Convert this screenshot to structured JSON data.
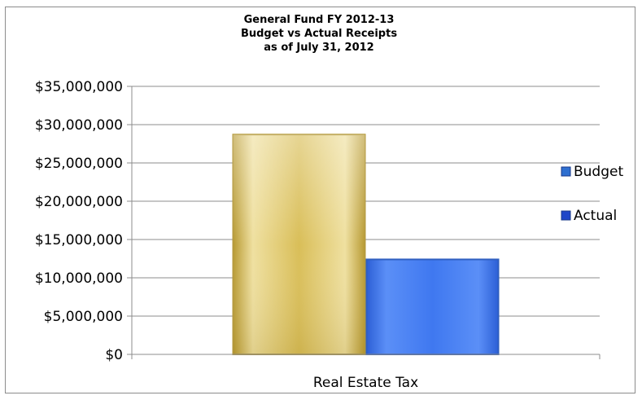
{
  "chart_data": {
    "type": "bar",
    "title": [
      "General Fund FY 2012-13",
      "Budget vs Actual Receipts",
      "as of July 31, 2012"
    ],
    "categories": [
      "Real Estate Tax"
    ],
    "series": [
      {
        "name": "Budget",
        "values": [
          28700000
        ],
        "color": "#d4b84a"
      },
      {
        "name": "Actual",
        "values": [
          12400000
        ],
        "color": "#3f78f0"
      }
    ],
    "yticks": [
      "$0",
      "$5,000,000",
      "$10,000,000",
      "$15,000,000",
      "$20,000,000",
      "$25,000,000",
      "$30,000,000",
      "$35,000,000"
    ],
    "ylim": [
      0,
      35000000
    ],
    "grid": true,
    "legend_position": "right"
  }
}
